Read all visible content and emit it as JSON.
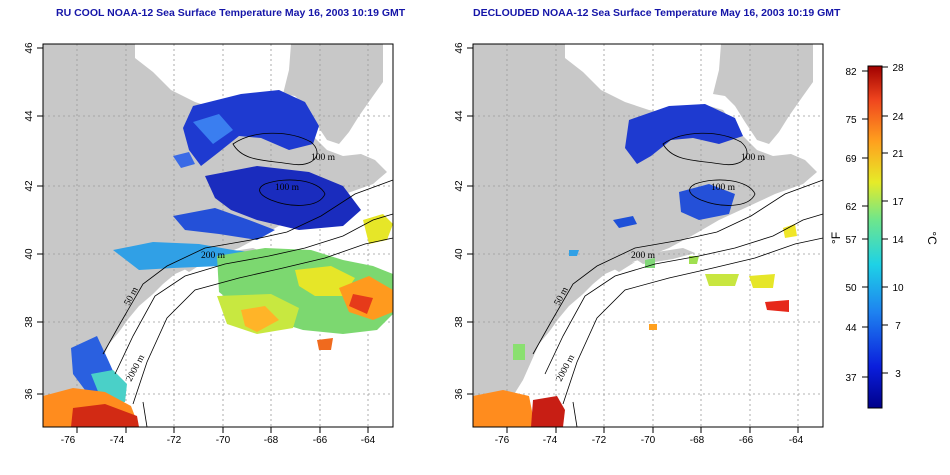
{
  "panels": [
    {
      "title": "RU COOL NOAA-12 Sea Surface Temperature May 16, 2003 10:19 GMT",
      "contour_labels": [
        "100 m",
        "100 m",
        "200 m",
        "50 m",
        "2000 m"
      ]
    },
    {
      "title": "DECLOUDED NOAA-12 Sea Surface Temperature May 16, 2003 10:19 GMT",
      "contour_labels": [
        "100 m",
        "100 m",
        "200 m",
        "50 m",
        "2000 m"
      ]
    }
  ],
  "axes": {
    "x_ticks": [
      "-76",
      "-74",
      "-72",
      "-70",
      "-68",
      "-66",
      "-64"
    ],
    "y_ticks": [
      "36",
      "38",
      "40",
      "42",
      "44",
      "46"
    ]
  },
  "colorbar": {
    "fahrenheit_ticks": [
      "82",
      "75",
      "69",
      "62",
      "57",
      "50",
      "44",
      "37"
    ],
    "celsius_ticks": [
      "28",
      "24",
      "21",
      "17",
      "14",
      "10",
      "7",
      "3"
    ],
    "fahrenheit_label": "°F",
    "celsius_label": "°C"
  },
  "colors": {
    "land": "#c8c8c8",
    "ocean": "#ffffff",
    "title": "#1515a8",
    "cold": "#1a2fc8",
    "hot": "#c81818"
  }
}
